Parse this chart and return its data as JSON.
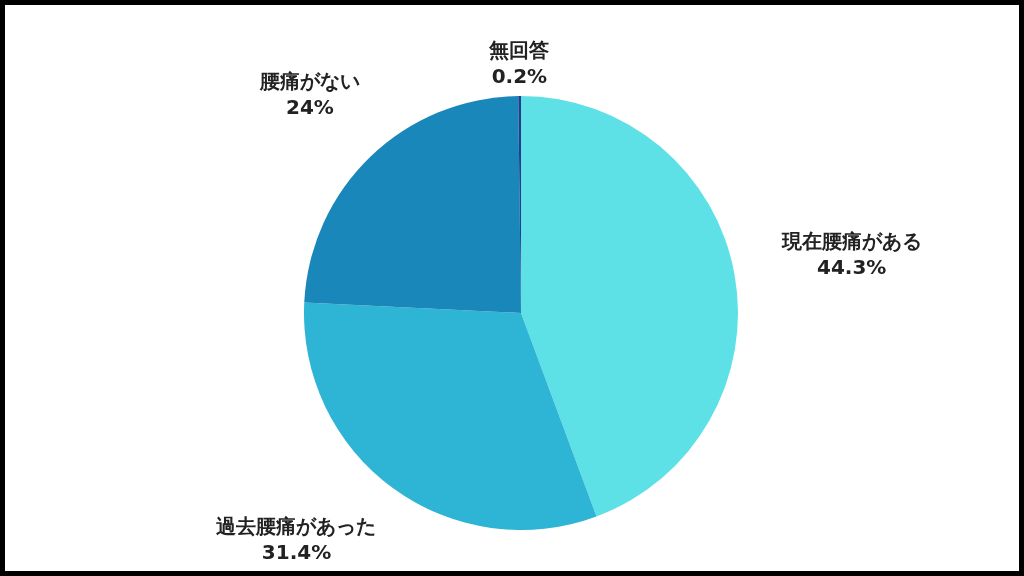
{
  "chart_data": {
    "type": "pie",
    "categories": [
      "現在腰痛がある",
      "過去腰痛があった",
      "腰痛がない",
      "無回答"
    ],
    "values": [
      44.3,
      31.4,
      24,
      0.2
    ],
    "colors": [
      "#5de1e6",
      "#2eb4d4",
      "#1a87ba",
      "#1f3f8a"
    ],
    "value_labels": [
      "44.3%",
      "31.4%",
      "24%",
      "0.2%"
    ],
    "legend": false
  }
}
